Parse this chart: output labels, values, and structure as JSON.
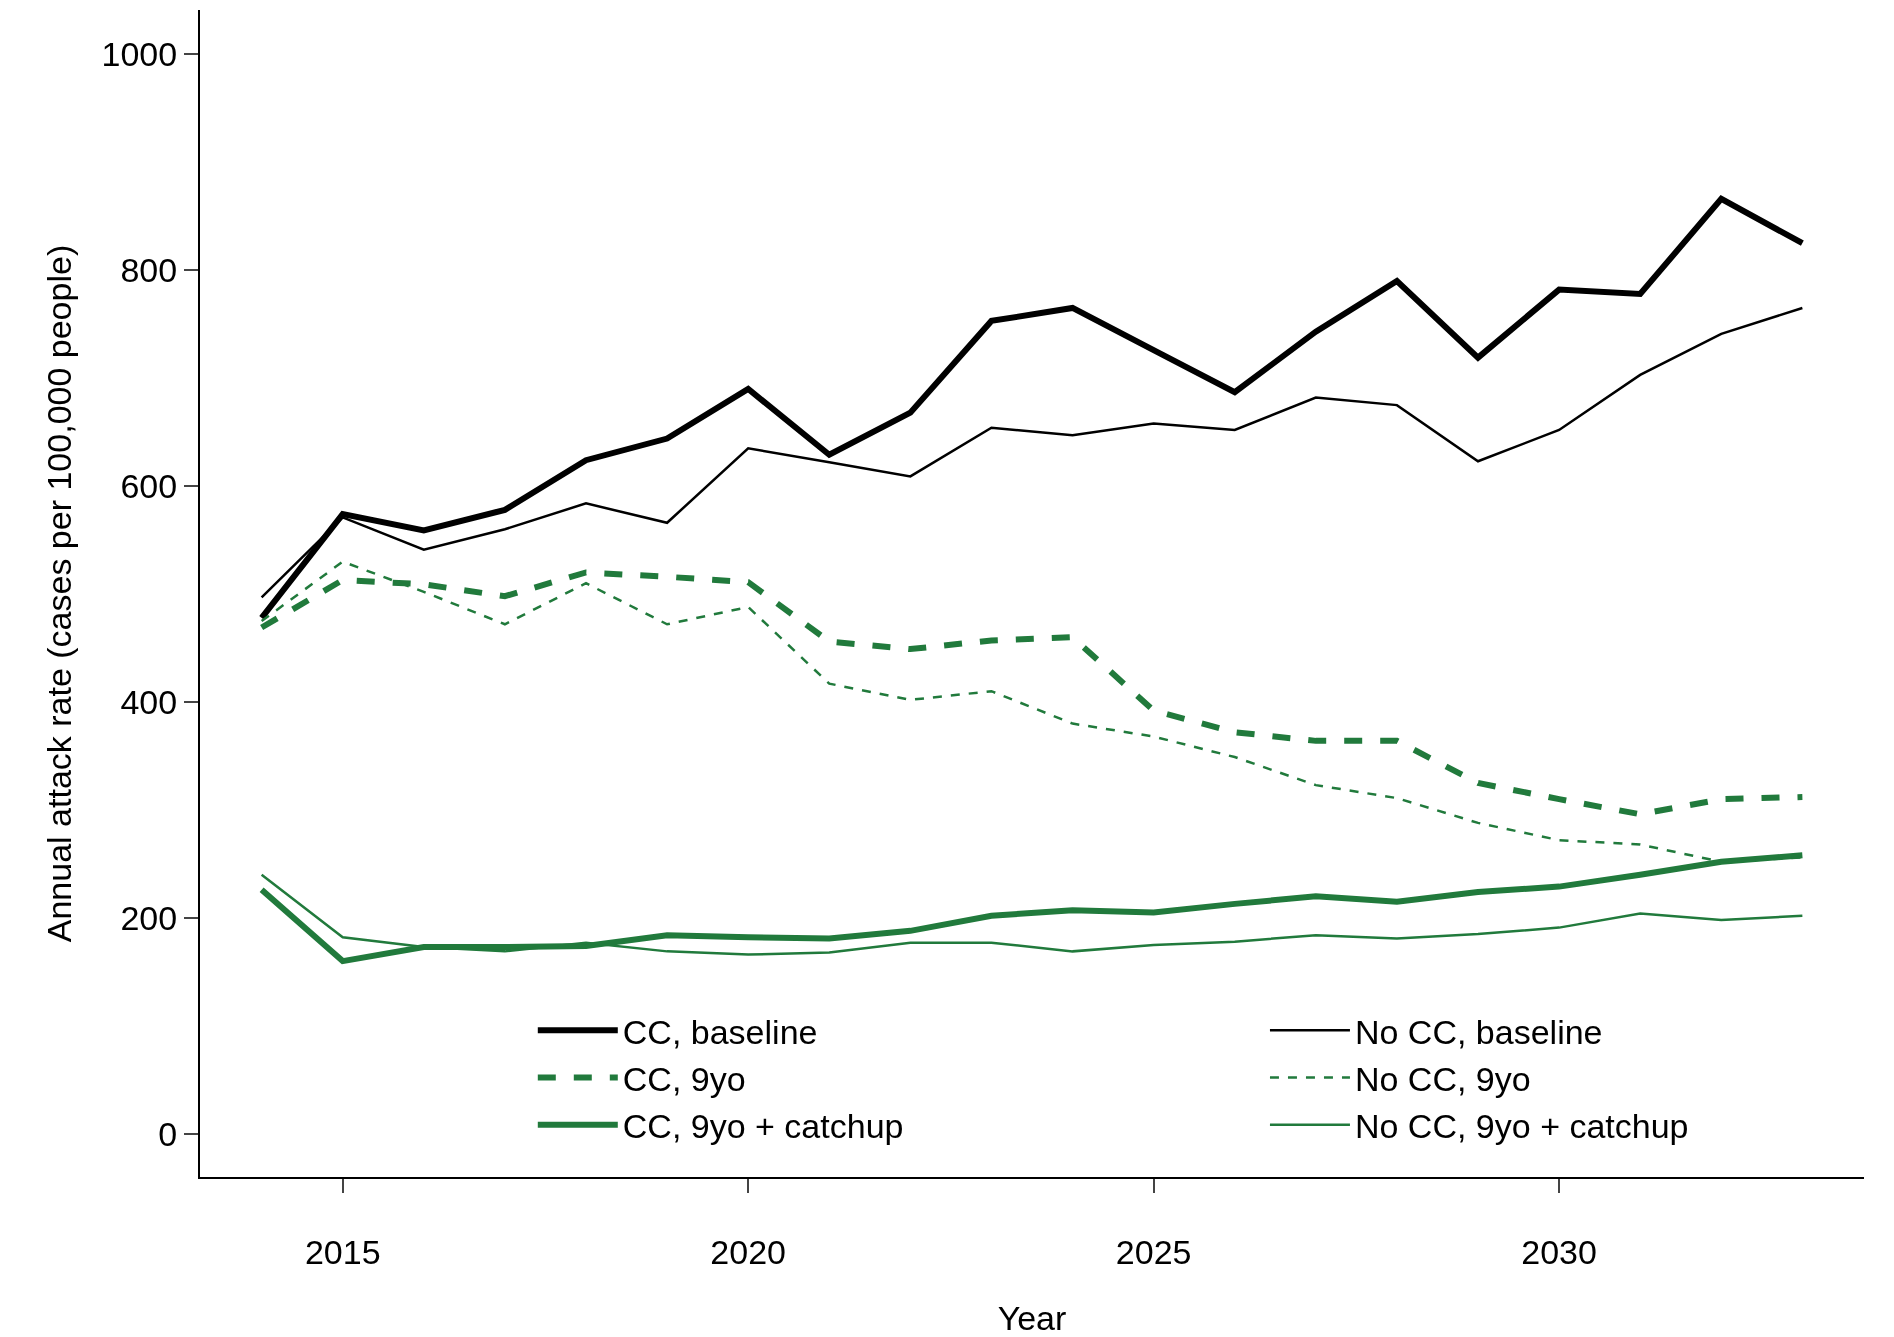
{
  "chart_data": {
    "type": "line",
    "xlabel": "Year",
    "ylabel": "Annual attack rate (cases per 100,000 people)",
    "x": [
      2014,
      2015,
      2016,
      2017,
      2018,
      2019,
      2020,
      2021,
      2022,
      2023,
      2024,
      2025,
      2026,
      2027,
      2028,
      2029,
      2030,
      2031,
      2032,
      2033
    ],
    "series": [
      {
        "name": "CC, baseline",
        "color": "#000000",
        "line_style": "solid",
        "values": [
          478,
          574,
          559,
          578,
          624,
          644,
          690,
          629,
          668,
          753,
          765,
          726,
          687,
          743,
          790,
          719,
          782,
          778,
          866,
          825
        ]
      },
      {
        "name": "CC, 9yo",
        "color": "#217a3c",
        "line_style": "dashed",
        "values": [
          469,
          513,
          509,
          498,
          520,
          516,
          511,
          456,
          449,
          457,
          460,
          392,
          372,
          364,
          364,
          325,
          310,
          296,
          310,
          312
        ]
      },
      {
        "name": "CC, 9yo + catchup",
        "color": "#217a3c",
        "line_style": "solid",
        "values": [
          226,
          160,
          173,
          173,
          174,
          184,
          182,
          181,
          188,
          202,
          207,
          205,
          213,
          220,
          215,
          224,
          229,
          240,
          252,
          258
        ]
      },
      {
        "name": "No CC, baseline",
        "color": "#000000",
        "line_style": "solid",
        "values": [
          497,
          571,
          541,
          560,
          584,
          566,
          635,
          622,
          609,
          654,
          647,
          658,
          652,
          682,
          675,
          623,
          652,
          703,
          741,
          765
        ]
      },
      {
        "name": "No CC, 9yo",
        "color": "#217a3c",
        "line_style": "dashed",
        "values": [
          475,
          530,
          502,
          472,
          510,
          472,
          488,
          417,
          402,
          410,
          380,
          368,
          349,
          323,
          311,
          288,
          272,
          268,
          252,
          256
        ]
      },
      {
        "name": "No CC, 9yo + catchup",
        "color": "#217a3c",
        "line_style": "solid",
        "values": [
          240,
          182,
          173,
          169,
          177,
          169,
          166,
          168,
          177,
          177,
          169,
          175,
          178,
          184,
          181,
          185,
          191,
          204,
          198,
          202
        ]
      }
    ],
    "xlim": [
      2013.24,
      2033.76
    ],
    "ylim": [
      -40,
      1041
    ],
    "xticks": [
      2015,
      2020,
      2025,
      2030
    ],
    "yticks": [
      0,
      200,
      400,
      600,
      800,
      1000
    ],
    "grid": false,
    "legend": "bottom",
    "marker": "none"
  }
}
